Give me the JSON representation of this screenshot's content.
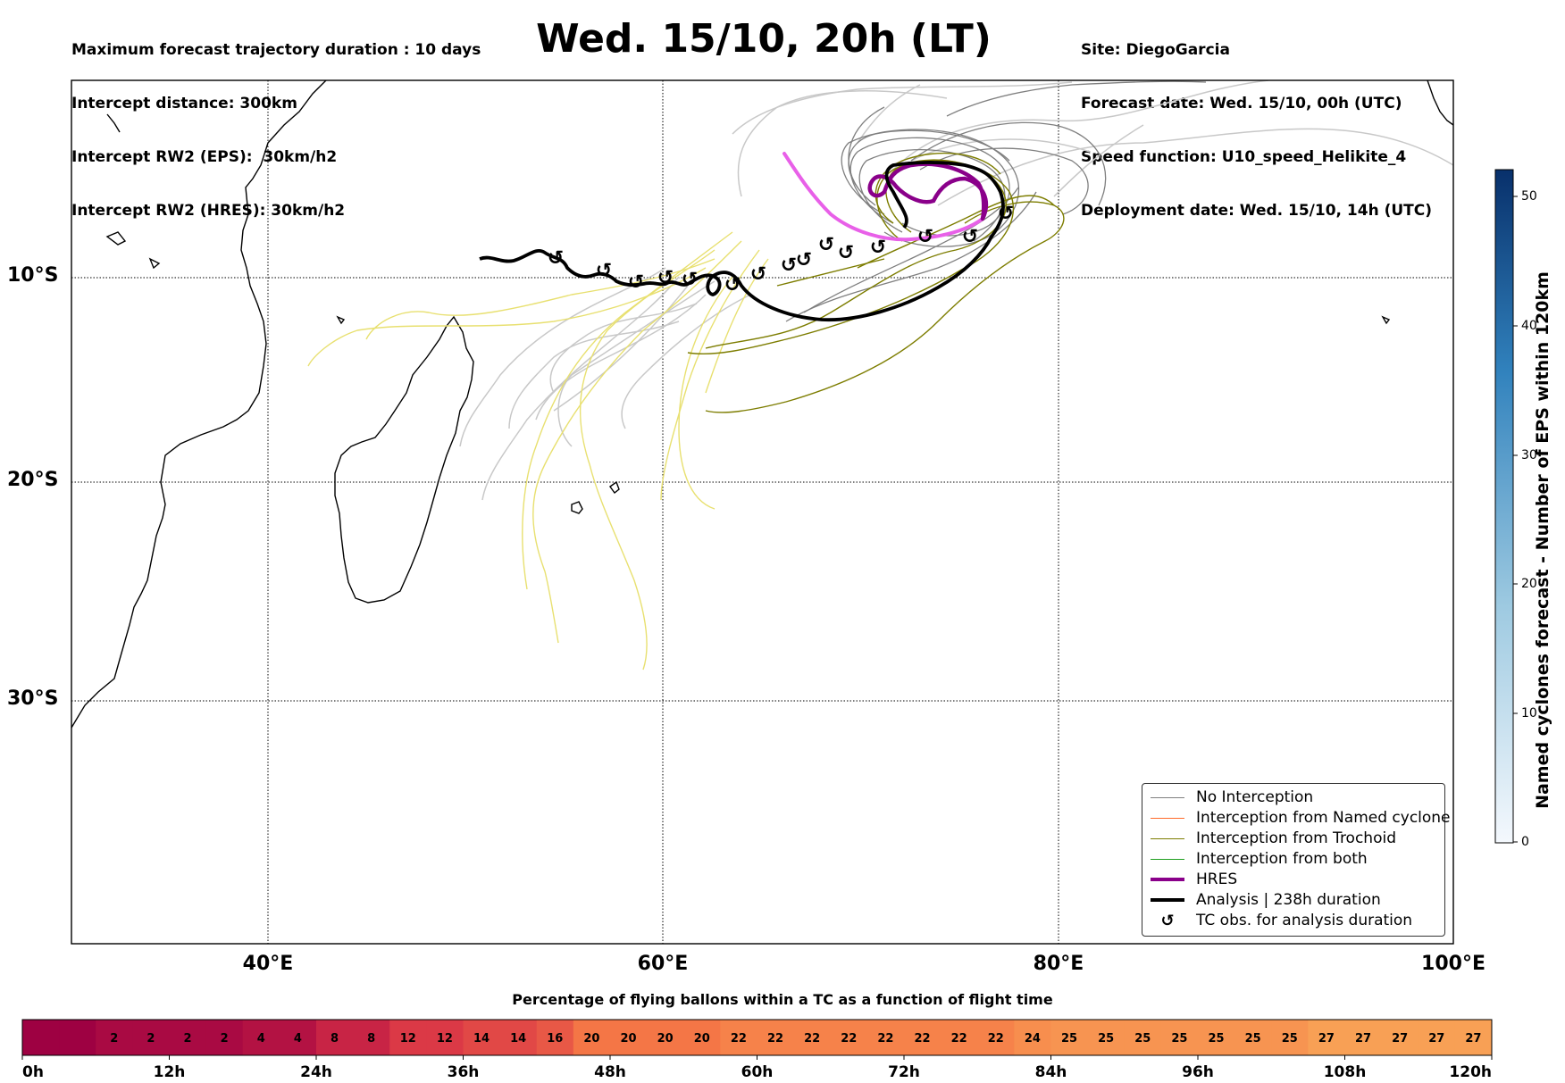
{
  "header": {
    "left_lines": [
      "Maximum forecast trajectory duration : 10 days",
      "Intercept distance: 300km",
      "Intercept RW2 (EPS):  30km/h2",
      "Intercept RW2 (HRES): 30km/h2"
    ],
    "title": "Wed. 15/10, 20h (LT)",
    "right_lines": [
      "Site: DiegoGarcia",
      "Forecast date: Wed. 15/10, 00h (UTC)",
      "Speed function: U10_speed_Helikite_4",
      "Deployment date: Wed. 15/10, 14h (UTC)"
    ]
  },
  "map": {
    "lat_labels": [
      "10°S",
      "20°S",
      "30°S"
    ],
    "lon_labels": [
      "40°E",
      "60°E",
      "80°E",
      "100°E"
    ]
  },
  "legend": {
    "items": [
      {
        "label": "No Interception",
        "color": "#7f7f7f",
        "style": "thin"
      },
      {
        "label": "Interception from Named cyclone",
        "color": "#ff6a2a",
        "style": "thin"
      },
      {
        "label": "Interception from Trochoid",
        "color": "#7d7d00",
        "style": "thin"
      },
      {
        "label": "Interception from both",
        "color": "#1e9e1e",
        "style": "thin"
      },
      {
        "label": "HRES",
        "color": "#8a008a",
        "style": "thick"
      },
      {
        "label": "Analysis | 238h duration",
        "color": "#000000",
        "style": "thick"
      },
      {
        "label": "TC obs. for analysis duration",
        "color": "#000000",
        "style": "symbol",
        "symbol": "↺"
      }
    ]
  },
  "colorbar_right": {
    "label": "Named cyclones forecast - Number of EPS within 120km",
    "ticks": [
      "0",
      "10",
      "20",
      "30",
      "40",
      "50"
    ],
    "color_low": "#f4f8fd",
    "color_high": "#08306b"
  },
  "bottom_bar": {
    "title": "Percentage of flying ballons within a TC as a function of flight time",
    "cells": [
      "",
      "",
      "2",
      "2",
      "2",
      "2",
      "4",
      "4",
      "8",
      "8",
      "12",
      "12",
      "14",
      "14",
      "16",
      "20",
      "20",
      "20",
      "20",
      "22",
      "22",
      "22",
      "22",
      "22",
      "22",
      "22",
      "22",
      "24",
      "25",
      "25",
      "25",
      "25",
      "25",
      "25",
      "25",
      "27",
      "27",
      "27",
      "27",
      "27"
    ],
    "tick_labels": [
      "0h",
      "12h",
      "24h",
      "36h",
      "48h",
      "60h",
      "72h",
      "84h",
      "96h",
      "108h",
      "120h"
    ]
  },
  "colors": {
    "analysis": "#000000",
    "hres_early": "#e860e8",
    "hres_late": "#8a008a",
    "eps_no_interception": "#7f7f7f",
    "eps_light": "#c8c8c8",
    "eps_trochoid": "#7d7d00",
    "eps_yellow": "#e8e070"
  }
}
